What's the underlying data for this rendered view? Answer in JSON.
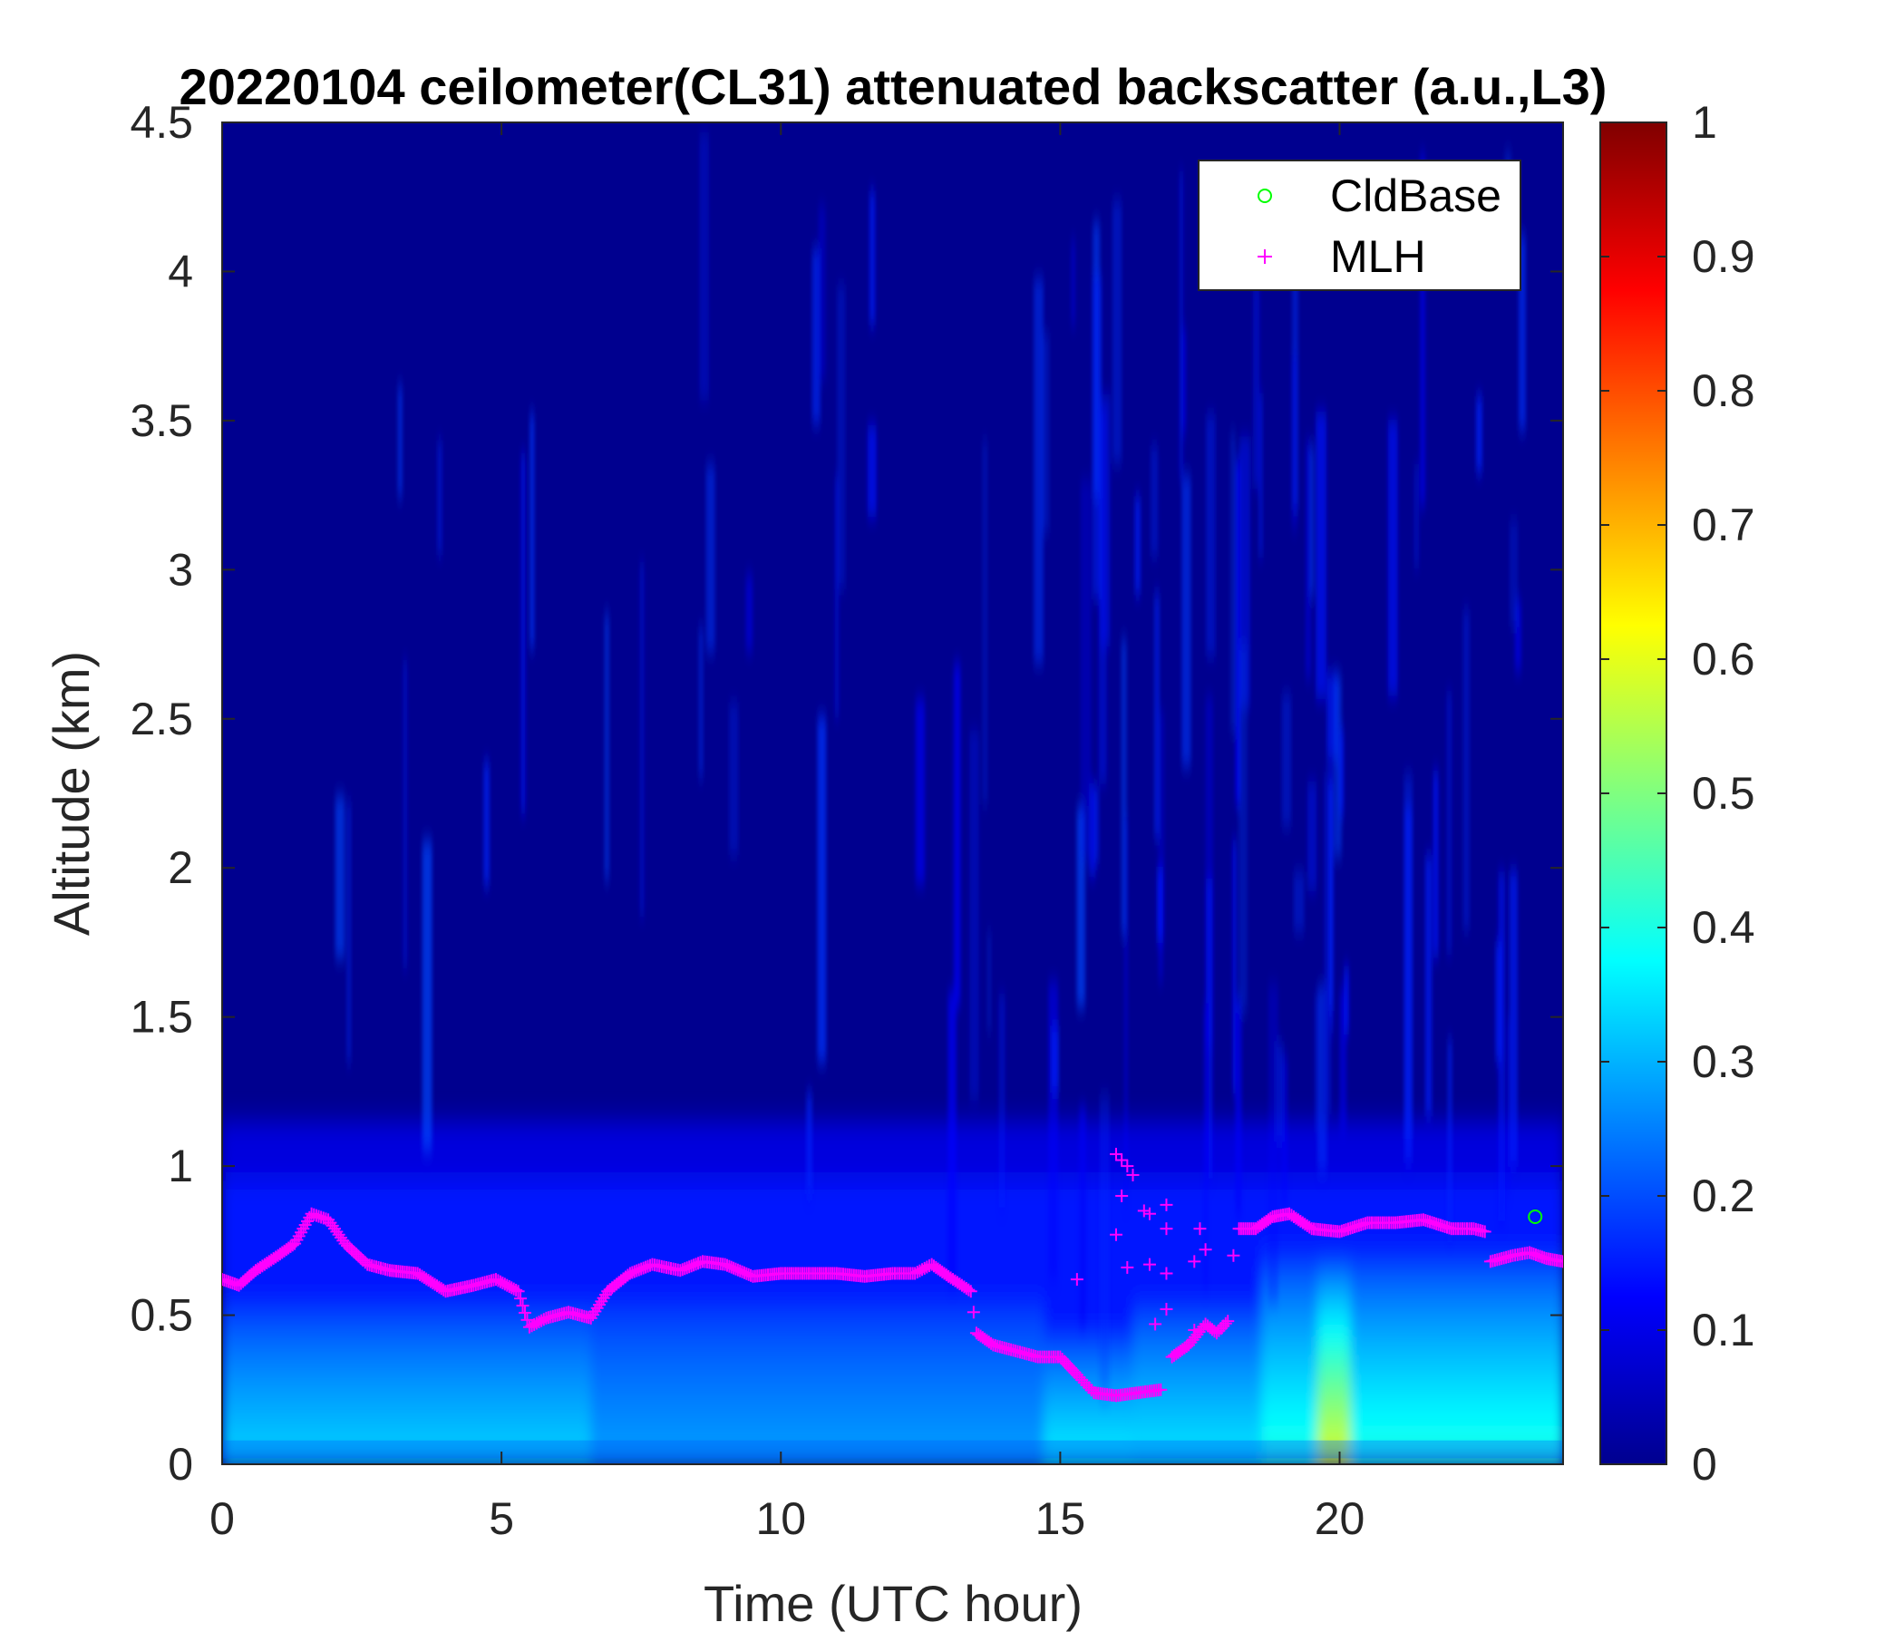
{
  "chart_data": {
    "type": "heatmap",
    "title": "20220104 ceilometer(CL31) attenuated backscatter (a.u.,L3)",
    "xlabel": "Time (UTC hour)",
    "ylabel": "Altitude (km)",
    "xlim": [
      0,
      24
    ],
    "ylim": [
      0,
      4.5
    ],
    "xticks": [
      0,
      5,
      10,
      15,
      20
    ],
    "yticks": [
      0,
      0.5,
      1,
      1.5,
      2,
      2.5,
      3,
      3.5,
      4,
      4.5
    ],
    "xtick_labels": [
      "0",
      "5",
      "10",
      "15",
      "20"
    ],
    "ytick_labels": [
      "0",
      "0.5",
      "1",
      "1.5",
      "2",
      "2.5",
      "3",
      "3.5",
      "4",
      "4.5"
    ],
    "colorbar": {
      "colormap": "jet",
      "range": [
        0,
        1
      ],
      "ticks": [
        0,
        0.1,
        0.2,
        0.3,
        0.4,
        0.5,
        0.6,
        0.7,
        0.8,
        0.9,
        1
      ],
      "tick_labels": [
        "0",
        "0.1",
        "0.2",
        "0.3",
        "0.4",
        "0.5",
        "0.6",
        "0.7",
        "0.8",
        "0.9",
        "1"
      ]
    },
    "legend": {
      "placement": "top-right",
      "entries": [
        "CldBase",
        "MLH"
      ]
    },
    "colors": {
      "cldbase": "#00ff00",
      "mlh": "#ff00ff"
    },
    "cldbase_points": [
      {
        "x": 23.5,
        "y": 0.83
      }
    ],
    "mlh_series": [
      [
        0.0,
        0.62
      ],
      [
        0.3,
        0.6
      ],
      [
        0.6,
        0.65
      ],
      [
        1.0,
        0.7
      ],
      [
        1.3,
        0.74
      ],
      [
        1.6,
        0.84
      ],
      [
        1.9,
        0.82
      ],
      [
        2.2,
        0.74
      ],
      [
        2.6,
        0.67
      ],
      [
        3.0,
        0.65
      ],
      [
        3.5,
        0.64
      ],
      [
        4.0,
        0.58
      ],
      [
        4.5,
        0.6
      ],
      [
        4.9,
        0.62
      ],
      [
        5.3,
        0.58
      ],
      [
        5.5,
        0.46
      ],
      [
        5.8,
        0.49
      ],
      [
        6.2,
        0.51
      ],
      [
        6.6,
        0.49
      ],
      [
        6.9,
        0.58
      ],
      [
        7.3,
        0.64
      ],
      [
        7.7,
        0.67
      ],
      [
        8.2,
        0.65
      ],
      [
        8.6,
        0.68
      ],
      [
        9.0,
        0.67
      ],
      [
        9.5,
        0.63
      ],
      [
        10.0,
        0.64
      ],
      [
        10.5,
        0.64
      ],
      [
        11.0,
        0.64
      ],
      [
        11.5,
        0.63
      ],
      [
        12.0,
        0.64
      ],
      [
        12.4,
        0.64
      ],
      [
        12.7,
        0.67
      ],
      [
        13.0,
        0.63
      ],
      [
        13.4,
        0.58
      ],
      [
        13.5,
        0.44
      ],
      [
        13.8,
        0.4
      ],
      [
        14.2,
        0.38
      ],
      [
        14.6,
        0.36
      ],
      [
        15.0,
        0.36
      ],
      [
        15.3,
        0.3
      ],
      [
        15.6,
        0.24
      ],
      [
        16.0,
        0.23
      ],
      [
        16.4,
        0.24
      ],
      [
        16.8,
        0.25
      ]
    ],
    "mlh_series_2": [
      [
        17.0,
        0.36
      ],
      [
        17.3,
        0.4
      ],
      [
        17.6,
        0.47
      ],
      [
        17.8,
        0.44
      ],
      [
        18.0,
        0.48
      ]
    ],
    "mlh_series_3": [
      [
        18.2,
        0.79
      ],
      [
        18.5,
        0.79
      ],
      [
        18.8,
        0.83
      ],
      [
        19.1,
        0.84
      ],
      [
        19.5,
        0.79
      ],
      [
        20.0,
        0.78
      ],
      [
        20.5,
        0.81
      ],
      [
        21.0,
        0.81
      ],
      [
        21.5,
        0.82
      ],
      [
        22.0,
        0.79
      ],
      [
        22.4,
        0.79
      ],
      [
        22.6,
        0.78
      ]
    ],
    "mlh_series_4": [
      [
        22.7,
        0.68
      ],
      [
        23.1,
        0.7
      ],
      [
        23.4,
        0.71
      ],
      [
        23.7,
        0.69
      ],
      [
        24.0,
        0.68
      ]
    ],
    "mlh_scatter": [
      [
        16.0,
        1.04
      ],
      [
        16.1,
        1.02
      ],
      [
        16.2,
        1.0
      ],
      [
        16.3,
        0.97
      ],
      [
        16.1,
        0.9
      ],
      [
        16.0,
        0.77
      ],
      [
        16.5,
        0.85
      ],
      [
        16.6,
        0.84
      ],
      [
        16.9,
        0.87
      ],
      [
        16.9,
        0.79
      ],
      [
        16.6,
        0.67
      ],
      [
        16.9,
        0.64
      ],
      [
        17.5,
        0.79
      ],
      [
        17.6,
        0.72
      ],
      [
        17.4,
        0.68
      ],
      [
        18.1,
        0.7
      ],
      [
        15.3,
        0.62
      ],
      [
        16.9,
        0.52
      ],
      [
        16.7,
        0.47
      ],
      [
        17.4,
        0.45
      ],
      [
        16.2,
        0.66
      ]
    ],
    "backscatter_field": {
      "boundary_layer_regions": [
        {
          "t0": 0.0,
          "t1": 6.6,
          "top_km": 0.55,
          "peak": 0.33
        },
        {
          "t0": 6.6,
          "t1": 14.7,
          "top_km": 0.55,
          "peak": 0.28
        },
        {
          "t0": 14.7,
          "t1": 16.3,
          "top_km": 0.45,
          "peak": 0.36
        },
        {
          "t0": 16.3,
          "t1": 18.6,
          "top_km": 0.55,
          "peak": 0.35
        },
        {
          "t0": 18.6,
          "t1": 19.6,
          "top_km": 0.72,
          "peak": 0.4
        },
        {
          "t0": 19.6,
          "t1": 20.2,
          "top_km": 0.72,
          "peak": 0.58
        },
        {
          "t0": 20.2,
          "t1": 24.0,
          "top_km": 0.72,
          "peak": 0.4
        }
      ],
      "aerosol_layer_top_km": 1.15,
      "upper_plumes_km": [
        2.5,
        4.5
      ]
    }
  }
}
